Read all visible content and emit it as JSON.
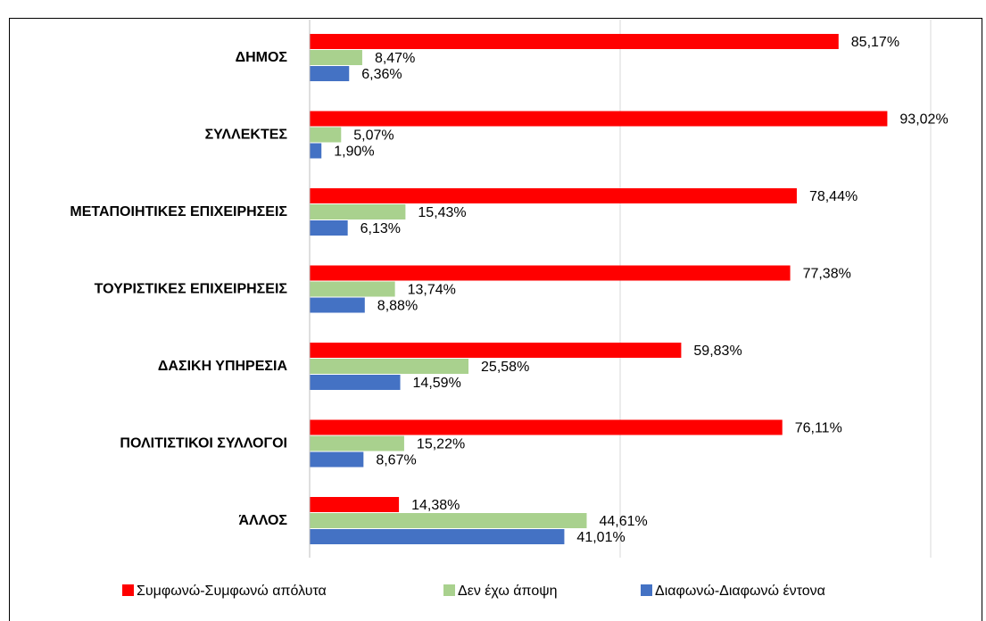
{
  "chart_data": {
    "type": "hbar",
    "categories": [
      "ΔΗΜΟΣ",
      "ΣΥΛΛΕΚΤΕΣ",
      "ΜΕΤΑΠΟΙΗΤΙΚΕΣ ΕΠΙΧΕΙΡΗΣΕΙΣ",
      "ΤΟΥΡΙΣΤΙΚΕΣ ΕΠΙΧΕΙΡΗΣΕΙΣ",
      "ΔΑΣΙΚΗ ΥΠΗΡΕΣΙΑ",
      "ΠΟΛΙΤΙΣΤΙΚΟΙ ΣΥΛΛΟΓΟΙ",
      "ΆΛΛΟΣ"
    ],
    "series": [
      {
        "name": "Συμφωνώ-Συμφωνώ απόλυτα",
        "color": "#ff0000",
        "values": [
          85.17,
          93.02,
          78.44,
          77.38,
          59.83,
          76.11,
          14.38
        ],
        "value_labels": [
          "85,17%",
          "93,02%",
          "78,44%",
          "77,38%",
          "59,83%",
          "76,11%",
          "14,38%"
        ]
      },
      {
        "name": "Δεν έχω άποψη",
        "color": "#a9d18e",
        "values": [
          8.47,
          5.07,
          15.43,
          13.74,
          25.58,
          15.22,
          44.61
        ],
        "value_labels": [
          "8,47%",
          "5,07%",
          "15,43%",
          "13,74%",
          "25,58%",
          "15,22%",
          "44,61%"
        ]
      },
      {
        "name": "Διαφωνώ-Διαφωνώ έντονα",
        "color": "#4472c4",
        "values": [
          6.36,
          1.9,
          6.13,
          8.88,
          14.59,
          8.67,
          41.01
        ],
        "value_labels": [
          "6,36%",
          "1,90%",
          "6,13%",
          "8,88%",
          "14,59%",
          "8,67%",
          "41,01%"
        ]
      }
    ],
    "xlim": [
      0,
      100
    ],
    "xticks": [
      0,
      50,
      100
    ],
    "grid": true,
    "legend": "bottom"
  }
}
